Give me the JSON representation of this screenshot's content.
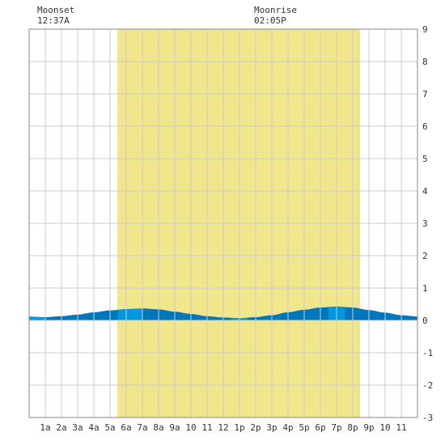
{
  "moonset": {
    "label": "Moonset",
    "time": "12:37A"
  },
  "moonrise": {
    "label": "Moonrise",
    "time": "02:05P"
  },
  "chart_data": {
    "type": "area",
    "title": "",
    "xlabel": "",
    "ylabel": "",
    "xlim": [
      0,
      24
    ],
    "ylim": [
      -3,
      9
    ],
    "grid": true,
    "x_tick_labels": [
      "1a",
      "2a",
      "3a",
      "4a",
      "5a",
      "6a",
      "7a",
      "8a",
      "9a",
      "10",
      "11",
      "12",
      "1p",
      "2p",
      "3p",
      "4p",
      "5p",
      "6p",
      "7p",
      "8p",
      "9p",
      "10",
      "11"
    ],
    "y_tick_labels": [
      "9",
      "8",
      "7",
      "6",
      "5",
      "4",
      "3",
      "2",
      "1",
      "0",
      "-1",
      "-2",
      "-3"
    ],
    "daylight": [
      5.45,
      20.45
    ],
    "moonset_hour": 0.62,
    "moonrise_hour": 14.08,
    "tide": {
      "x": [
        0,
        1,
        2,
        3,
        4,
        5,
        6,
        7,
        8,
        9,
        10,
        11,
        12,
        13,
        14,
        15,
        16,
        17,
        18,
        19,
        20,
        21,
        22,
        23,
        24
      ],
      "y": [
        0.12,
        0.1,
        0.13,
        0.18,
        0.25,
        0.31,
        0.35,
        0.37,
        0.34,
        0.27,
        0.2,
        0.13,
        0.09,
        0.07,
        0.1,
        0.16,
        0.25,
        0.33,
        0.4,
        0.43,
        0.4,
        0.32,
        0.24,
        0.16,
        0.12
      ]
    },
    "colors": {
      "daylight": "#f0e68c",
      "tide_light": "#0099dd",
      "tide_dark": "#0077bb",
      "grid": "#cccccc",
      "frame": "#888888"
    }
  }
}
